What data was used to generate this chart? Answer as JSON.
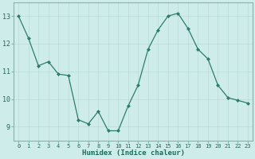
{
  "x": [
    0,
    1,
    2,
    3,
    4,
    5,
    6,
    7,
    8,
    9,
    10,
    11,
    12,
    13,
    14,
    15,
    16,
    17,
    18,
    19,
    20,
    21,
    22,
    23
  ],
  "y": [
    13.0,
    12.2,
    11.2,
    11.35,
    10.9,
    10.85,
    9.25,
    9.1,
    9.55,
    8.85,
    8.85,
    9.75,
    10.5,
    11.8,
    12.5,
    13.0,
    13.1,
    12.55,
    11.8,
    11.45,
    10.5,
    10.05,
    9.95,
    9.85
  ],
  "line_color": "#2d7d6e",
  "marker": "D",
  "marker_size": 2,
  "bg_color": "#ceecea",
  "grid_color": "#b8dbd9",
  "xlabel": "Humidex (Indice chaleur)",
  "xlim": [
    -0.5,
    23.5
  ],
  "ylim": [
    8.5,
    13.5
  ],
  "yticks": [
    9,
    10,
    11,
    12,
    13
  ],
  "xticks": [
    0,
    1,
    2,
    3,
    4,
    5,
    6,
    7,
    8,
    9,
    10,
    11,
    12,
    13,
    14,
    15,
    16,
    17,
    18,
    19,
    20,
    21,
    22,
    23
  ],
  "tick_color": "#1e6b5e",
  "spine_color": "#7ab8b0",
  "xtick_fontsize": 5.0,
  "ytick_fontsize": 6.0,
  "xlabel_fontsize": 6.5
}
